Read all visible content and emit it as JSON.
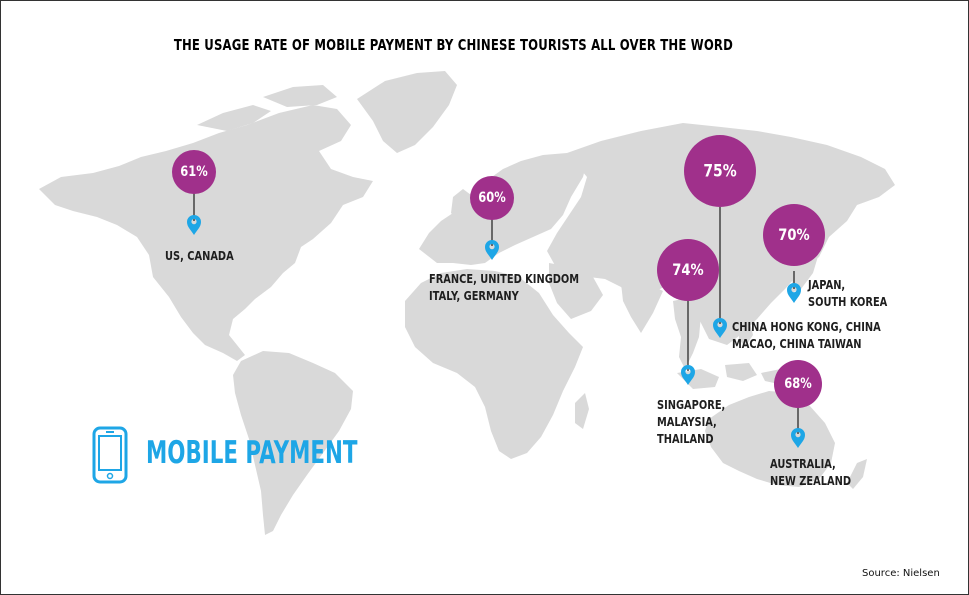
{
  "title": "THE USAGE RATE OF MOBILE PAYMENT BY CHINESE TOURISTS ALL OVER THE WORD",
  "legend": {
    "icon": "smartphone-icon",
    "label": "MOBILE PAYMENT"
  },
  "source": "Source: Nielsen",
  "colors": {
    "bubble": "#a0308b",
    "pin": "#1ea6e6",
    "land": "#d9d9d9",
    "legend": "#1ea6e6"
  },
  "markers": [
    {
      "id": "us-canada",
      "value_label": "61%",
      "value": 61,
      "place": "US, CANADA",
      "pin_icon": "location-pin-icon"
    },
    {
      "id": "europe",
      "value_label": "60%",
      "value": 60,
      "place": "FRANCE, UNITED KINGDOM\nITALY, GERMANY",
      "pin_icon": "location-pin-icon"
    },
    {
      "id": "china-regions",
      "value_label": "75%",
      "value": 75,
      "place": "CHINA HONG KONG, CHINA\nMACAO, CHINA TAIWAN",
      "pin_icon": "location-pin-icon"
    },
    {
      "id": "japan-korea",
      "value_label": "70%",
      "value": 70,
      "place": "JAPAN,\nSOUTH KOREA",
      "pin_icon": "location-pin-icon"
    },
    {
      "id": "southeast-asia",
      "value_label": "74%",
      "value": 74,
      "place": "SINGAPORE,\nMALAYSIA,\nTHAILAND",
      "pin_icon": "location-pin-icon"
    },
    {
      "id": "oceania",
      "value_label": "68%",
      "value": 68,
      "place": "AUSTRALIA,\nNEW ZEALAND",
      "pin_icon": "location-pin-icon"
    }
  ]
}
